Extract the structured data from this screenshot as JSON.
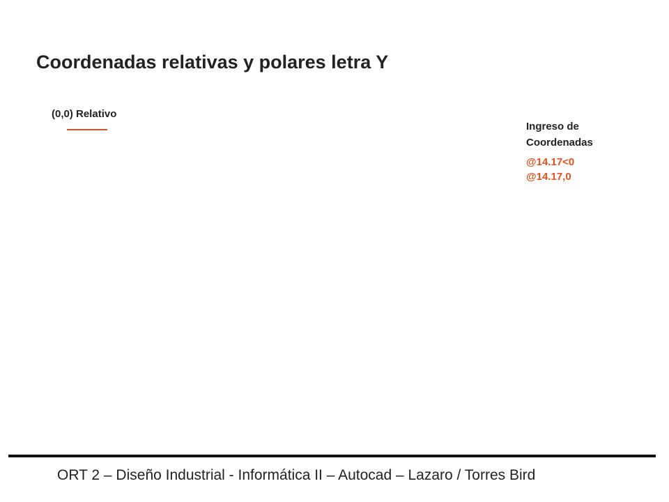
{
  "title": "Coordenadas relativas y polares letra Y",
  "origin_label": "(0,0) Relativo",
  "input_heading": [
    "Ingreso de",
    "Coordenadas"
  ],
  "commands": [
    "@14.17<0",
    "@14.17,0"
  ],
  "footer": "ORT 2 – Diseño Industrial - Informática II – Autocad – Lazaro / Torres Bird"
}
